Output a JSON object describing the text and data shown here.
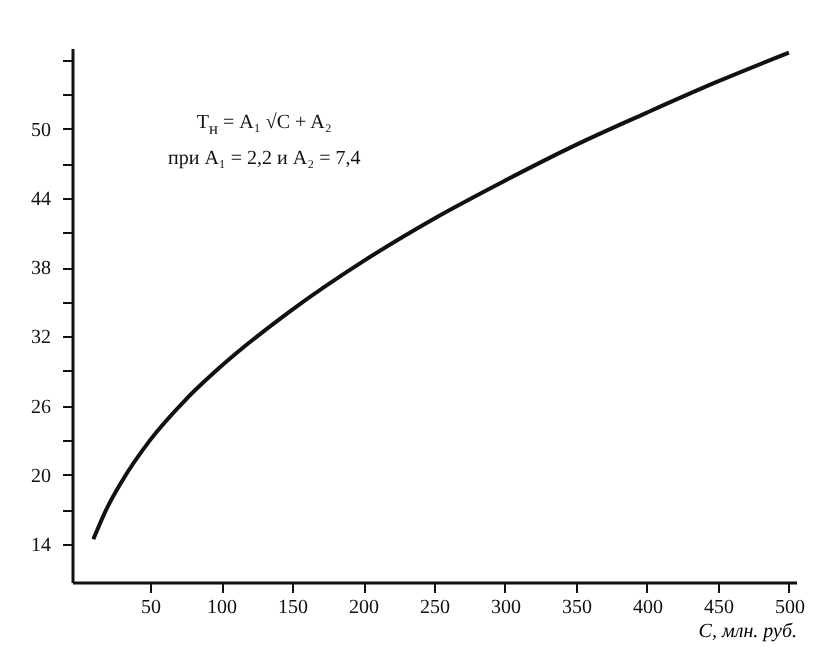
{
  "chart_data": {
    "type": "line",
    "xlabel": "C, млн. руб.",
    "annotations": [
      "T$_{н}$ = A₁ √C + A₂",
      "при A₁ = 2,2 и A₂ = 7,4"
    ],
    "x": [
      10,
      20,
      30,
      50,
      75,
      100,
      150,
      200,
      250,
      300,
      350,
      400,
      450,
      500
    ],
    "series": [
      {
        "color": "#111111",
        "values": [
          14.4,
          17.2,
          19.4,
          23.0,
          26.5,
          29.4,
          34.3,
          38.5,
          42.2,
          45.5,
          48.6,
          51.4,
          54.1,
          56.6
        ]
      }
    ],
    "line_style": "solid",
    "xlim": [
      -5,
      505
    ],
    "ylim": [
      10.7,
      57
    ],
    "xticks": [
      50,
      100,
      150,
      200,
      250,
      300,
      350,
      400,
      450,
      500
    ],
    "yticks": [
      14,
      {
        "value": 17,
        "label": null
      },
      20,
      {
        "value": 23,
        "label": null
      },
      26,
      {
        "value": 29,
        "label": null
      },
      32,
      {
        "value": 35,
        "label": null
      },
      38,
      {
        "value": 41,
        "label": null
      },
      44,
      {
        "value": 47,
        "label": null
      },
      50,
      {
        "value": 53,
        "label": null
      },
      {
        "value": 56,
        "label": null
      }
    ]
  }
}
